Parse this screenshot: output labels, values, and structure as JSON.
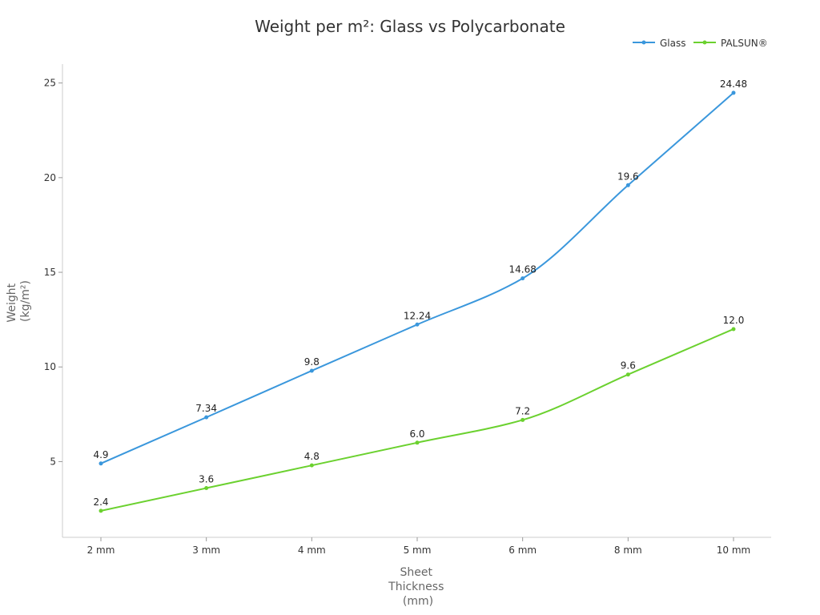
{
  "chart_data": {
    "type": "line",
    "title": "Weight per m²: Glass vs Polycarbonate",
    "xlabel_lines": [
      "Sheet",
      "Thickness",
      "(mm)"
    ],
    "ylabel_lines": [
      "Weight",
      "(kg/m²)"
    ],
    "categories": [
      "2 mm",
      "3 mm",
      "4 mm",
      "5 mm",
      "6 mm",
      "8 mm",
      "10 mm"
    ],
    "ylim": [
      1.0,
      26.0
    ],
    "yticks": [
      5,
      10,
      15,
      20,
      25
    ],
    "grid": false,
    "legend_position": "top-right",
    "series": [
      {
        "name": "Glass",
        "color": "#3a97dc",
        "values": [
          4.9,
          7.34,
          9.8,
          12.24,
          14.68,
          19.6,
          24.48
        ],
        "labels": [
          "4.9",
          "7.34",
          "9.8",
          "12.24",
          "14.68",
          "19.6",
          "24.48"
        ]
      },
      {
        "name": "PALSUN®",
        "color": "#6bd12f",
        "values": [
          2.4,
          3.6,
          4.8,
          6.0,
          7.2,
          9.6,
          12.0
        ],
        "labels": [
          "2.4",
          "3.6",
          "4.8",
          "6.0",
          "7.2",
          "9.6",
          "12.0"
        ]
      }
    ]
  }
}
